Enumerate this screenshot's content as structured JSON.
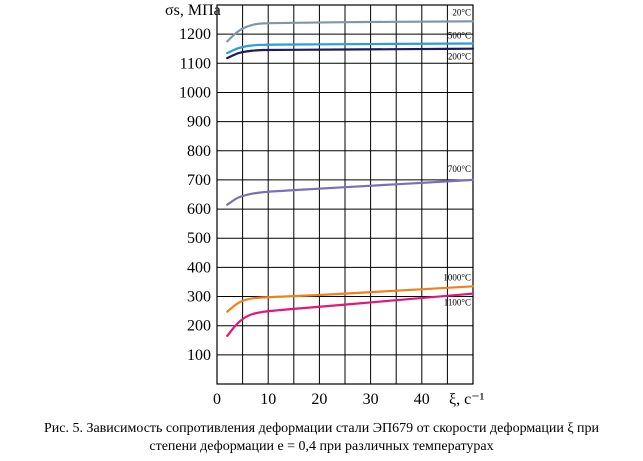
{
  "chart_data": {
    "type": "line",
    "ylabel": "σs, МПа",
    "xlabel": "ξ, с⁻¹",
    "xlim": [
      0,
      50
    ],
    "ylim": [
      0,
      1300
    ],
    "xticks": [
      0,
      10,
      20,
      30,
      40
    ],
    "yticks": [
      100,
      200,
      300,
      400,
      500,
      600,
      700,
      800,
      900,
      1000,
      1100,
      1200
    ],
    "grid": true,
    "series": [
      {
        "name": "20°C",
        "color": "#8096a8",
        "x": [
          2,
          4,
          6,
          8,
          10,
          20,
          30,
          40,
          50
        ],
        "y": [
          1175,
          1210,
          1228,
          1236,
          1238,
          1240,
          1242,
          1243,
          1244
        ]
      },
      {
        "name": "500°C",
        "color": "#2a9fd6",
        "x": [
          2,
          4,
          6,
          8,
          10,
          20,
          30,
          40,
          50
        ],
        "y": [
          1135,
          1152,
          1160,
          1163,
          1164,
          1165,
          1166,
          1167,
          1168
        ]
      },
      {
        "name": "200°C",
        "color": "#1c1c5c",
        "x": [
          2,
          4,
          6,
          8,
          10,
          20,
          30,
          40,
          50
        ],
        "y": [
          1118,
          1135,
          1142,
          1145,
          1146,
          1147,
          1148,
          1149,
          1150
        ]
      },
      {
        "name": "700°C",
        "color": "#7b6fb8",
        "x": [
          2,
          4,
          6,
          8,
          10,
          20,
          30,
          40,
          50
        ],
        "y": [
          615,
          640,
          650,
          656,
          660,
          670,
          680,
          690,
          700
        ]
      },
      {
        "name": "1000°C",
        "color": "#f08018",
        "x": [
          2,
          4,
          6,
          8,
          10,
          20,
          30,
          40,
          50
        ],
        "y": [
          248,
          278,
          292,
          296,
          298,
          305,
          315,
          325,
          335
        ]
      },
      {
        "name": "1100°C",
        "color": "#e0187a",
        "x": [
          2,
          4,
          6,
          8,
          10,
          20,
          30,
          40,
          50
        ],
        "y": [
          165,
          210,
          235,
          245,
          250,
          265,
          280,
          295,
          310
        ]
      }
    ]
  },
  "caption": {
    "line1": "Рис. 5. Зависимость сопротивления деформации стали ЭП679 от скорости деформации ξ при",
    "line2": "степени деформации e = 0,4 при различных температурах"
  }
}
